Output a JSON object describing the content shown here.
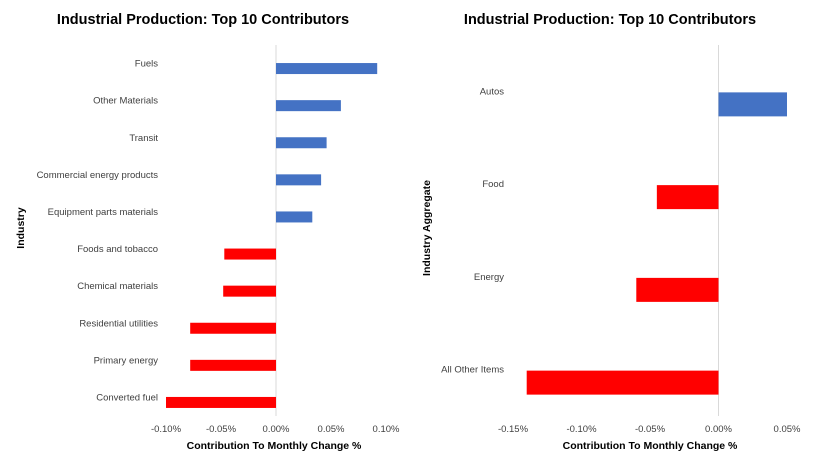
{
  "chart_data": [
    {
      "type": "bar",
      "orientation": "horizontal",
      "title": "Industrial Production: Top 10 Contributors",
      "xlabel": "Contribution To Monthly Change %",
      "ylabel": "Industry",
      "xlim": [
        -0.1,
        0.1
      ],
      "xticks": [
        -0.1,
        -0.05,
        0.0,
        0.05,
        0.1
      ],
      "xtick_labels": [
        "-0.10%",
        "-0.05%",
        "0.00%",
        "0.05%",
        "0.10%"
      ],
      "grid": false,
      "categories": [
        "Fuels",
        "Other Materials",
        "Transit",
        "Commercial energy products",
        "Equipment parts materials",
        "Foods and tobacco",
        "Chemical materials",
        "Residential utilities",
        "Primary energy",
        "Converted fuel"
      ],
      "values": [
        0.092,
        0.059,
        0.046,
        0.041,
        0.033,
        -0.047,
        -0.048,
        -0.078,
        -0.078,
        -0.1
      ],
      "colors": {
        "positive": "#4472C4",
        "negative": "#FF0000"
      }
    },
    {
      "type": "bar",
      "orientation": "horizontal",
      "title": "Industrial Production: Top 10 Contributors",
      "xlabel": "Contribution To Monthly Change %",
      "ylabel": "Industry Aggregate",
      "xlim": [
        -0.15,
        0.05
      ],
      "xticks": [
        -0.15,
        -0.1,
        -0.05,
        0.0,
        0.05
      ],
      "xtick_labels": [
        "-0.15%",
        "-0.10%",
        "-0.05%",
        "0.00%",
        "0.05%"
      ],
      "grid": false,
      "categories": [
        "Autos",
        "Food",
        "Energy",
        "All Other Items"
      ],
      "values": [
        0.05,
        -0.045,
        -0.06,
        -0.14
      ],
      "colors": {
        "positive": "#4472C4",
        "negative": "#FF0000"
      }
    }
  ]
}
